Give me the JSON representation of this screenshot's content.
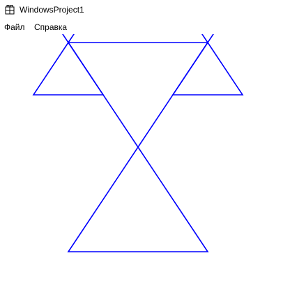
{
  "window": {
    "title": "WindowsProject1",
    "icon": "app-window-icon"
  },
  "menu": {
    "items": [
      {
        "label": "Файл"
      },
      {
        "label": "Справка"
      }
    ]
  },
  "fractal": {
    "type": "triangle-tree",
    "levels": 6,
    "stroke_color": "#0000ff",
    "description_shape": "nested-triangles"
  }
}
